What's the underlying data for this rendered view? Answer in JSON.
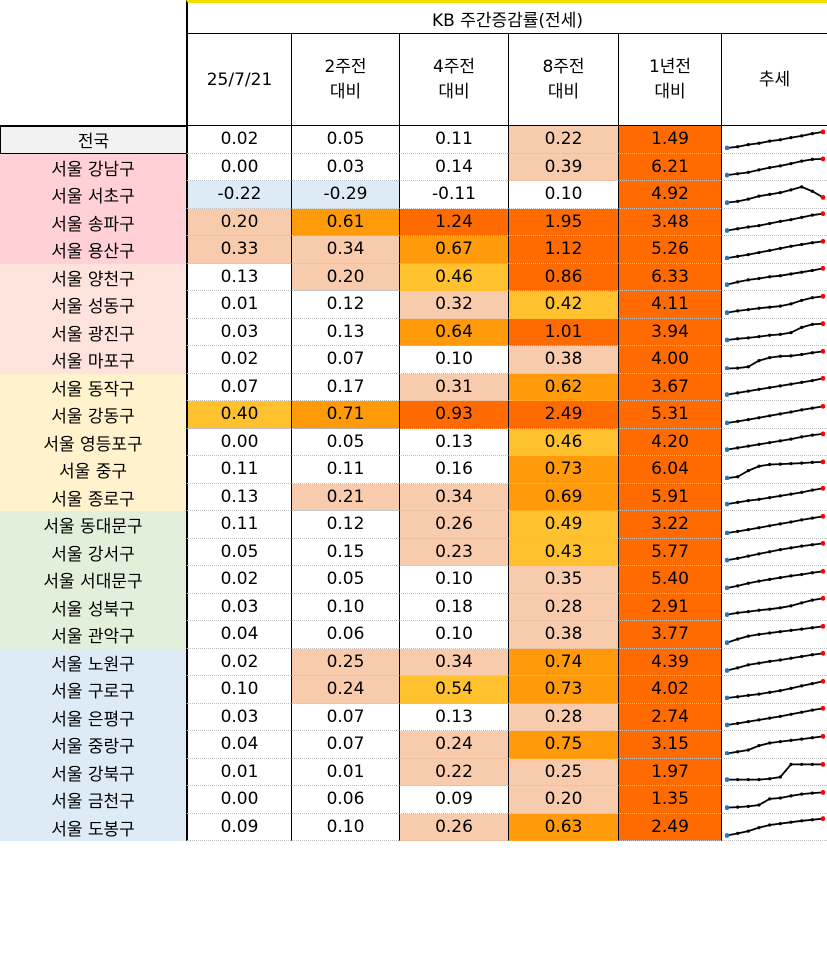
{
  "header": {
    "group_title": "KB 주간증감률(전세)",
    "columns": [
      {
        "line1": "25/7/21",
        "line2": ""
      },
      {
        "line1": "2주전",
        "line2": "대비"
      },
      {
        "line1": "4주전",
        "line2": "대비"
      },
      {
        "line1": "8주전",
        "line2": "대비"
      },
      {
        "line1": "1년전",
        "line2": "대비"
      },
      {
        "line1": "추세",
        "line2": ""
      }
    ]
  },
  "colors": {
    "border": "#000000",
    "gridline": "#bfbfbf",
    "header_top_accent": "#f2e200",
    "highlight_peach": "#f8cbad",
    "highlight_yellow": "#ffc22e",
    "highlight_orange": "#ff9b0a",
    "highlight_deep_orange": "#ff6b00",
    "highlight_blue": "#ddebf7",
    "group_pink": "#ffd1d6",
    "group_lightpink": "#fde3dc",
    "group_yellow": "#fff2cc",
    "group_green": "#e2efda",
    "group_blue": "#ddebf7",
    "national_label_bg": "#f2f2f2"
  },
  "rows": [
    {
      "region": "전국",
      "group": "national",
      "values": [
        "0.02",
        "0.05",
        "0.11",
        "0.22",
        "1.49"
      ],
      "fills": [
        "",
        "",
        "",
        "peach",
        "deep_orange"
      ]
    },
    {
      "region": "서울 강남구",
      "group": "pink",
      "values": [
        "0.00",
        "0.03",
        "0.14",
        "0.39",
        "6.21"
      ],
      "fills": [
        "",
        "",
        "",
        "peach",
        "deep_orange"
      ]
    },
    {
      "region": "서울 서초구",
      "group": "pink",
      "values": [
        "-0.22",
        "-0.29",
        "-0.11",
        "0.10",
        "4.92"
      ],
      "fills": [
        "blue",
        "blue",
        "",
        "",
        "deep_orange"
      ]
    },
    {
      "region": "서울 송파구",
      "group": "pink",
      "values": [
        "0.20",
        "0.61",
        "1.24",
        "1.95",
        "3.48"
      ],
      "fills": [
        "peach",
        "orange",
        "deep_orange",
        "deep_orange",
        "deep_orange"
      ]
    },
    {
      "region": "서울 용산구",
      "group": "pink",
      "values": [
        "0.33",
        "0.34",
        "0.67",
        "1.12",
        "5.26"
      ],
      "fills": [
        "peach",
        "peach",
        "orange",
        "deep_orange",
        "deep_orange"
      ]
    },
    {
      "region": "서울 양천구",
      "group": "lightpink",
      "values": [
        "0.13",
        "0.20",
        "0.46",
        "0.86",
        "6.33"
      ],
      "fills": [
        "",
        "peach",
        "yellow",
        "deep_orange",
        "deep_orange"
      ]
    },
    {
      "region": "서울 성동구",
      "group": "lightpink",
      "values": [
        "0.01",
        "0.12",
        "0.32",
        "0.42",
        "4.11"
      ],
      "fills": [
        "",
        "",
        "peach",
        "yellow",
        "deep_orange"
      ]
    },
    {
      "region": "서울 광진구",
      "group": "lightpink",
      "values": [
        "0.03",
        "0.13",
        "0.64",
        "1.01",
        "3.94"
      ],
      "fills": [
        "",
        "",
        "orange",
        "deep_orange",
        "deep_orange"
      ]
    },
    {
      "region": "서울 마포구",
      "group": "lightpink",
      "values": [
        "0.02",
        "0.07",
        "0.10",
        "0.38",
        "4.00"
      ],
      "fills": [
        "",
        "",
        "",
        "peach",
        "deep_orange"
      ]
    },
    {
      "region": "서울 동작구",
      "group": "yellow",
      "values": [
        "0.07",
        "0.17",
        "0.31",
        "0.62",
        "3.67"
      ],
      "fills": [
        "",
        "",
        "peach",
        "orange",
        "deep_orange"
      ]
    },
    {
      "region": "서울 강동구",
      "group": "yellow",
      "values": [
        "0.40",
        "0.71",
        "0.93",
        "2.49",
        "5.31"
      ],
      "fills": [
        "yellow",
        "orange",
        "deep_orange",
        "deep_orange",
        "deep_orange"
      ]
    },
    {
      "region": "서울 영등포구",
      "group": "yellow",
      "values": [
        "0.00",
        "0.05",
        "0.13",
        "0.46",
        "4.20"
      ],
      "fills": [
        "",
        "",
        "",
        "yellow",
        "deep_orange"
      ]
    },
    {
      "region": "서울 중구",
      "group": "yellow",
      "values": [
        "0.11",
        "0.11",
        "0.16",
        "0.73",
        "6.04"
      ],
      "fills": [
        "",
        "",
        "",
        "orange",
        "deep_orange"
      ]
    },
    {
      "region": "서울 종로구",
      "group": "yellow",
      "values": [
        "0.13",
        "0.21",
        "0.34",
        "0.69",
        "5.91"
      ],
      "fills": [
        "",
        "peach",
        "peach",
        "orange",
        "deep_orange"
      ]
    },
    {
      "region": "서울 동대문구",
      "group": "green",
      "values": [
        "0.11",
        "0.12",
        "0.26",
        "0.49",
        "3.22"
      ],
      "fills": [
        "",
        "",
        "peach",
        "yellow",
        "deep_orange"
      ]
    },
    {
      "region": "서울 강서구",
      "group": "green",
      "values": [
        "0.05",
        "0.15",
        "0.23",
        "0.43",
        "5.77"
      ],
      "fills": [
        "",
        "",
        "peach",
        "yellow",
        "deep_orange"
      ]
    },
    {
      "region": "서울 서대문구",
      "group": "green",
      "values": [
        "0.02",
        "0.05",
        "0.10",
        "0.35",
        "5.40"
      ],
      "fills": [
        "",
        "",
        "",
        "peach",
        "deep_orange"
      ]
    },
    {
      "region": "서울 성북구",
      "group": "green",
      "values": [
        "0.03",
        "0.10",
        "0.18",
        "0.28",
        "2.91"
      ],
      "fills": [
        "",
        "",
        "",
        "peach",
        "deep_orange"
      ]
    },
    {
      "region": "서울 관악구",
      "group": "green",
      "values": [
        "0.04",
        "0.06",
        "0.10",
        "0.38",
        "3.77"
      ],
      "fills": [
        "",
        "",
        "",
        "peach",
        "deep_orange"
      ]
    },
    {
      "region": "서울 노원구",
      "group": "blue",
      "values": [
        "0.02",
        "0.25",
        "0.34",
        "0.74",
        "4.39"
      ],
      "fills": [
        "",
        "peach",
        "peach",
        "orange",
        "deep_orange"
      ]
    },
    {
      "region": "서울 구로구",
      "group": "blue",
      "values": [
        "0.10",
        "0.24",
        "0.54",
        "0.73",
        "4.02"
      ],
      "fills": [
        "",
        "peach",
        "yellow",
        "orange",
        "deep_orange"
      ]
    },
    {
      "region": "서울 은평구",
      "group": "blue",
      "values": [
        "0.03",
        "0.07",
        "0.13",
        "0.28",
        "2.74"
      ],
      "fills": [
        "",
        "",
        "",
        "peach",
        "deep_orange"
      ]
    },
    {
      "region": "서울 중랑구",
      "group": "blue",
      "values": [
        "0.04",
        "0.07",
        "0.24",
        "0.75",
        "3.15"
      ],
      "fills": [
        "",
        "",
        "peach",
        "orange",
        "deep_orange"
      ]
    },
    {
      "region": "서울 강북구",
      "group": "blue",
      "values": [
        "0.01",
        "0.01",
        "0.22",
        "0.25",
        "1.97"
      ],
      "fills": [
        "",
        "",
        "peach",
        "peach",
        "deep_orange"
      ]
    },
    {
      "region": "서울 금천구",
      "group": "blue",
      "values": [
        "0.00",
        "0.06",
        "0.09",
        "0.20",
        "1.35"
      ],
      "fills": [
        "",
        "",
        "",
        "peach",
        "deep_orange"
      ]
    },
    {
      "region": "서울 도봉구",
      "group": "blue",
      "values": [
        "0.09",
        "0.10",
        "0.26",
        "0.63",
        "2.49"
      ],
      "fills": [
        "",
        "",
        "peach",
        "orange",
        "deep_orange"
      ]
    }
  ],
  "trend_shapes": [
    [
      0.03,
      0.1,
      0.22,
      0.3,
      0.42,
      0.5,
      0.62,
      0.72,
      0.85,
      0.95
    ],
    [
      0.02,
      0.1,
      0.18,
      0.32,
      0.45,
      0.55,
      0.68,
      0.82,
      0.92,
      0.95
    ],
    [
      0.05,
      0.12,
      0.25,
      0.42,
      0.52,
      0.62,
      0.78,
      0.95,
      0.7,
      0.35
    ],
    [
      0.0,
      0.1,
      0.2,
      0.28,
      0.4,
      0.52,
      0.62,
      0.75,
      0.88,
      0.96
    ],
    [
      0.02,
      0.12,
      0.22,
      0.34,
      0.46,
      0.58,
      0.7,
      0.8,
      0.9,
      0.98
    ],
    [
      0.05,
      0.2,
      0.32,
      0.4,
      0.5,
      0.56,
      0.66,
      0.76,
      0.86,
      0.98
    ],
    [
      0.05,
      0.15,
      0.22,
      0.3,
      0.36,
      0.42,
      0.55,
      0.75,
      0.9,
      0.98
    ],
    [
      0.03,
      0.1,
      0.15,
      0.22,
      0.3,
      0.35,
      0.45,
      0.75,
      0.92,
      0.96
    ],
    [
      0.0,
      0.02,
      0.1,
      0.45,
      0.62,
      0.7,
      0.72,
      0.8,
      0.9,
      0.98
    ],
    [
      0.05,
      0.15,
      0.25,
      0.35,
      0.45,
      0.55,
      0.65,
      0.75,
      0.85,
      0.98
    ],
    [
      0.03,
      0.12,
      0.22,
      0.33,
      0.44,
      0.55,
      0.66,
      0.78,
      0.88,
      0.98
    ],
    [
      0.05,
      0.15,
      0.25,
      0.35,
      0.45,
      0.55,
      0.65,
      0.78,
      0.88,
      0.95
    ],
    [
      0.02,
      0.1,
      0.45,
      0.7,
      0.8,
      0.82,
      0.85,
      0.88,
      0.92,
      0.95
    ],
    [
      0.08,
      0.18,
      0.28,
      0.35,
      0.45,
      0.55,
      0.65,
      0.75,
      0.88,
      0.98
    ],
    [
      0.03,
      0.12,
      0.22,
      0.33,
      0.44,
      0.55,
      0.66,
      0.78,
      0.88,
      0.98
    ],
    [
      0.02,
      0.12,
      0.25,
      0.38,
      0.5,
      0.62,
      0.72,
      0.82,
      0.9,
      0.98
    ],
    [
      0.03,
      0.15,
      0.3,
      0.42,
      0.52,
      0.62,
      0.72,
      0.8,
      0.9,
      0.98
    ],
    [
      0.05,
      0.15,
      0.22,
      0.3,
      0.36,
      0.44,
      0.55,
      0.72,
      0.88,
      0.98
    ],
    [
      0.05,
      0.25,
      0.42,
      0.52,
      0.6,
      0.68,
      0.75,
      0.82,
      0.9,
      0.98
    ],
    [
      0.0,
      0.15,
      0.32,
      0.42,
      0.52,
      0.6,
      0.7,
      0.8,
      0.9,
      0.98
    ],
    [
      0.03,
      0.1,
      0.18,
      0.25,
      0.35,
      0.45,
      0.58,
      0.72,
      0.85,
      0.98
    ],
    [
      0.03,
      0.12,
      0.22,
      0.32,
      0.42,
      0.52,
      0.64,
      0.76,
      0.88,
      0.98
    ],
    [
      0.0,
      0.1,
      0.2,
      0.45,
      0.6,
      0.68,
      0.75,
      0.82,
      0.9,
      0.98
    ],
    [
      0.05,
      0.05,
      0.05,
      0.05,
      0.1,
      0.2,
      0.92,
      0.92,
      0.92,
      0.92
    ],
    [
      0.05,
      0.08,
      0.12,
      0.2,
      0.55,
      0.6,
      0.72,
      0.82,
      0.88,
      0.92
    ],
    [
      0.0,
      0.12,
      0.25,
      0.45,
      0.6,
      0.68,
      0.76,
      0.84,
      0.9,
      0.96
    ]
  ]
}
